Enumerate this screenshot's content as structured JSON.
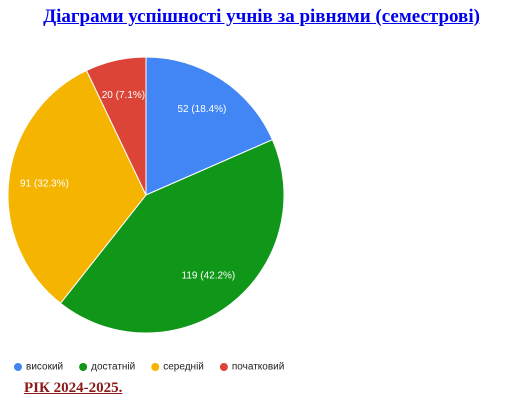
{
  "chart_data": {
    "type": "pie",
    "title": "Діаграми успішності учнів за рівнями (семестрові)",
    "categories": [
      "високий",
      "достатній",
      "середній",
      "початковий"
    ],
    "values": [
      52,
      119,
      91,
      20
    ],
    "value_labels": [
      "52 (18.4%)",
      "119 (42.2%)",
      "91 (32.3%)",
      "20 (7.1%)"
    ],
    "colors": [
      "#4285f4",
      "#109618",
      "#f4b400",
      "#db4437"
    ],
    "legend": "bottom"
  },
  "footer": "РІК 2024-2025."
}
